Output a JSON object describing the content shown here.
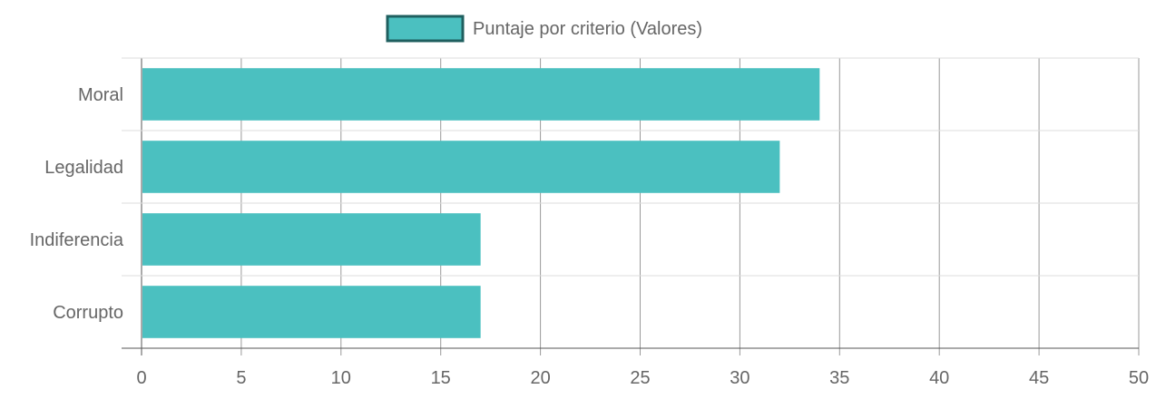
{
  "chart_data": {
    "type": "bar",
    "orientation": "horizontal",
    "categories": [
      "Moral",
      "Legalidad",
      "Indiferencia",
      "Corrupto"
    ],
    "series": [
      {
        "name": "Puntaje por criterio (Valores)",
        "values": [
          34,
          32,
          17,
          17
        ],
        "color": "#4bc0c0",
        "border_color": "#1f5f5f"
      }
    ],
    "xlim": [
      0,
      50
    ],
    "xticks": [
      0,
      5,
      10,
      15,
      20,
      25,
      30,
      35,
      40,
      45,
      50
    ],
    "grid": true,
    "legend_position": "top-center"
  }
}
